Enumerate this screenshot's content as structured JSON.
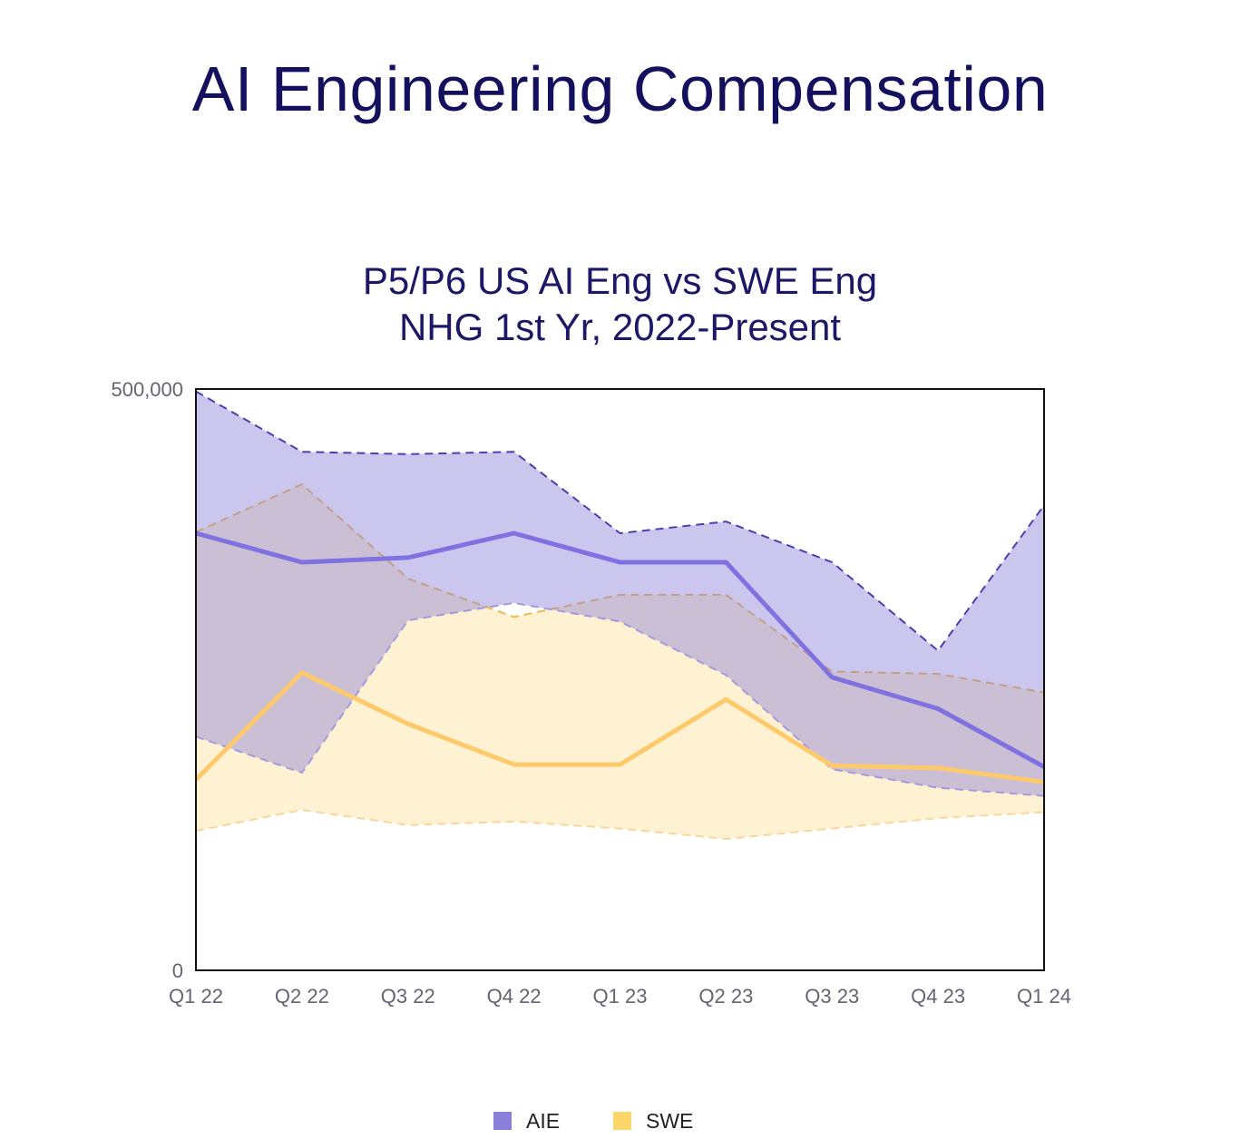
{
  "header": {
    "title": "AI Engineering Compensation"
  },
  "chart_data": {
    "type": "area",
    "title_line1": "P5/P6 US AI Eng vs SWE Eng",
    "title_line2": "NHG 1st Yr, 2022-Present",
    "categories": [
      "Q1 22",
      "Q2 22",
      "Q3 22",
      "Q4 22",
      "Q1 23",
      "Q2 23",
      "Q3 23",
      "Q4 23",
      "Q1 24"
    ],
    "ylim": [
      0,
      500000
    ],
    "y_ticks": [
      {
        "value": 0,
        "label": "0"
      },
      {
        "value": 500000,
        "label": "500,000"
      }
    ],
    "series": [
      {
        "name": "AIE",
        "color": "#8b80d9",
        "line_color": "#7f72e0",
        "median": [
          376000,
          351000,
          355000,
          376000,
          351000,
          351000,
          252000,
          225000,
          175000
        ],
        "upper": [
          498000,
          446000,
          444000,
          446000,
          376000,
          386000,
          351000,
          275000,
          400000
        ],
        "lower": [
          201000,
          170000,
          301000,
          316000,
          300000,
          254000,
          173000,
          157000,
          150000
        ]
      },
      {
        "name": "SWE",
        "color": "#fcd56b",
        "line_color": "#fdc96a",
        "median": [
          164000,
          256000,
          212000,
          177000,
          177000,
          233000,
          176000,
          174000,
          162000
        ],
        "upper": [
          377000,
          418000,
          337000,
          304000,
          323000,
          323000,
          257000,
          255000,
          239000
        ],
        "lower": [
          120000,
          138000,
          125000,
          128000,
          122000,
          113000,
          122000,
          131000,
          136000
        ]
      }
    ],
    "legend": [
      {
        "label": "AIE",
        "color": "#8b80d9"
      },
      {
        "label": "SWE",
        "color": "#fcd56b"
      }
    ]
  }
}
